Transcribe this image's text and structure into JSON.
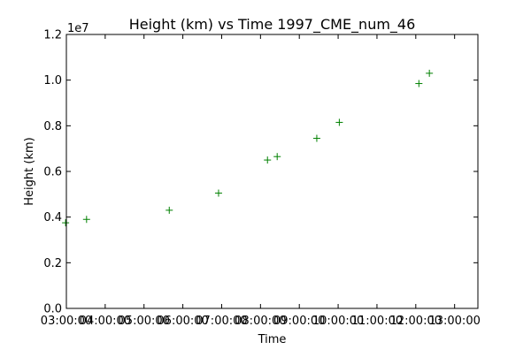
{
  "chart_data": {
    "type": "scatter",
    "title": "Height (km) vs Time 1997_CME_num_46",
    "xlabel": "Time",
    "ylabel": "Height (km)",
    "y_scale_label": "1e7",
    "xlim": [
      3.0,
      13.6
    ],
    "ylim": [
      0,
      1.2
    ],
    "x_tick_values": [
      3,
      4,
      5,
      6,
      7,
      8,
      9,
      10,
      11,
      12,
      13
    ],
    "x_tick_labels": [
      "03:00:00",
      "04:00:00",
      "05:00:00",
      "06:00:00",
      "07:00:00",
      "08:00:00",
      "09:00:00",
      "10:00:00",
      "11:00:00",
      "12:00:00",
      "13:00:00"
    ],
    "y_ticks": [
      0.0,
      0.2,
      0.4,
      0.6,
      0.8,
      1.0,
      1.2
    ],
    "y_tick_labels": [
      "0.0",
      "0.2",
      "0.4",
      "0.6",
      "0.8",
      "1.0",
      "1.2"
    ],
    "series": [
      {
        "marker": "+",
        "color": "#008000",
        "x": [
          2.98,
          3.52,
          5.65,
          6.92,
          8.18,
          8.43,
          9.45,
          10.03,
          12.08,
          12.35
        ],
        "y": [
          0.375,
          0.39,
          0.43,
          0.505,
          0.65,
          0.665,
          0.745,
          0.815,
          0.985,
          1.03
        ]
      }
    ],
    "grid": false,
    "legend": false
  }
}
